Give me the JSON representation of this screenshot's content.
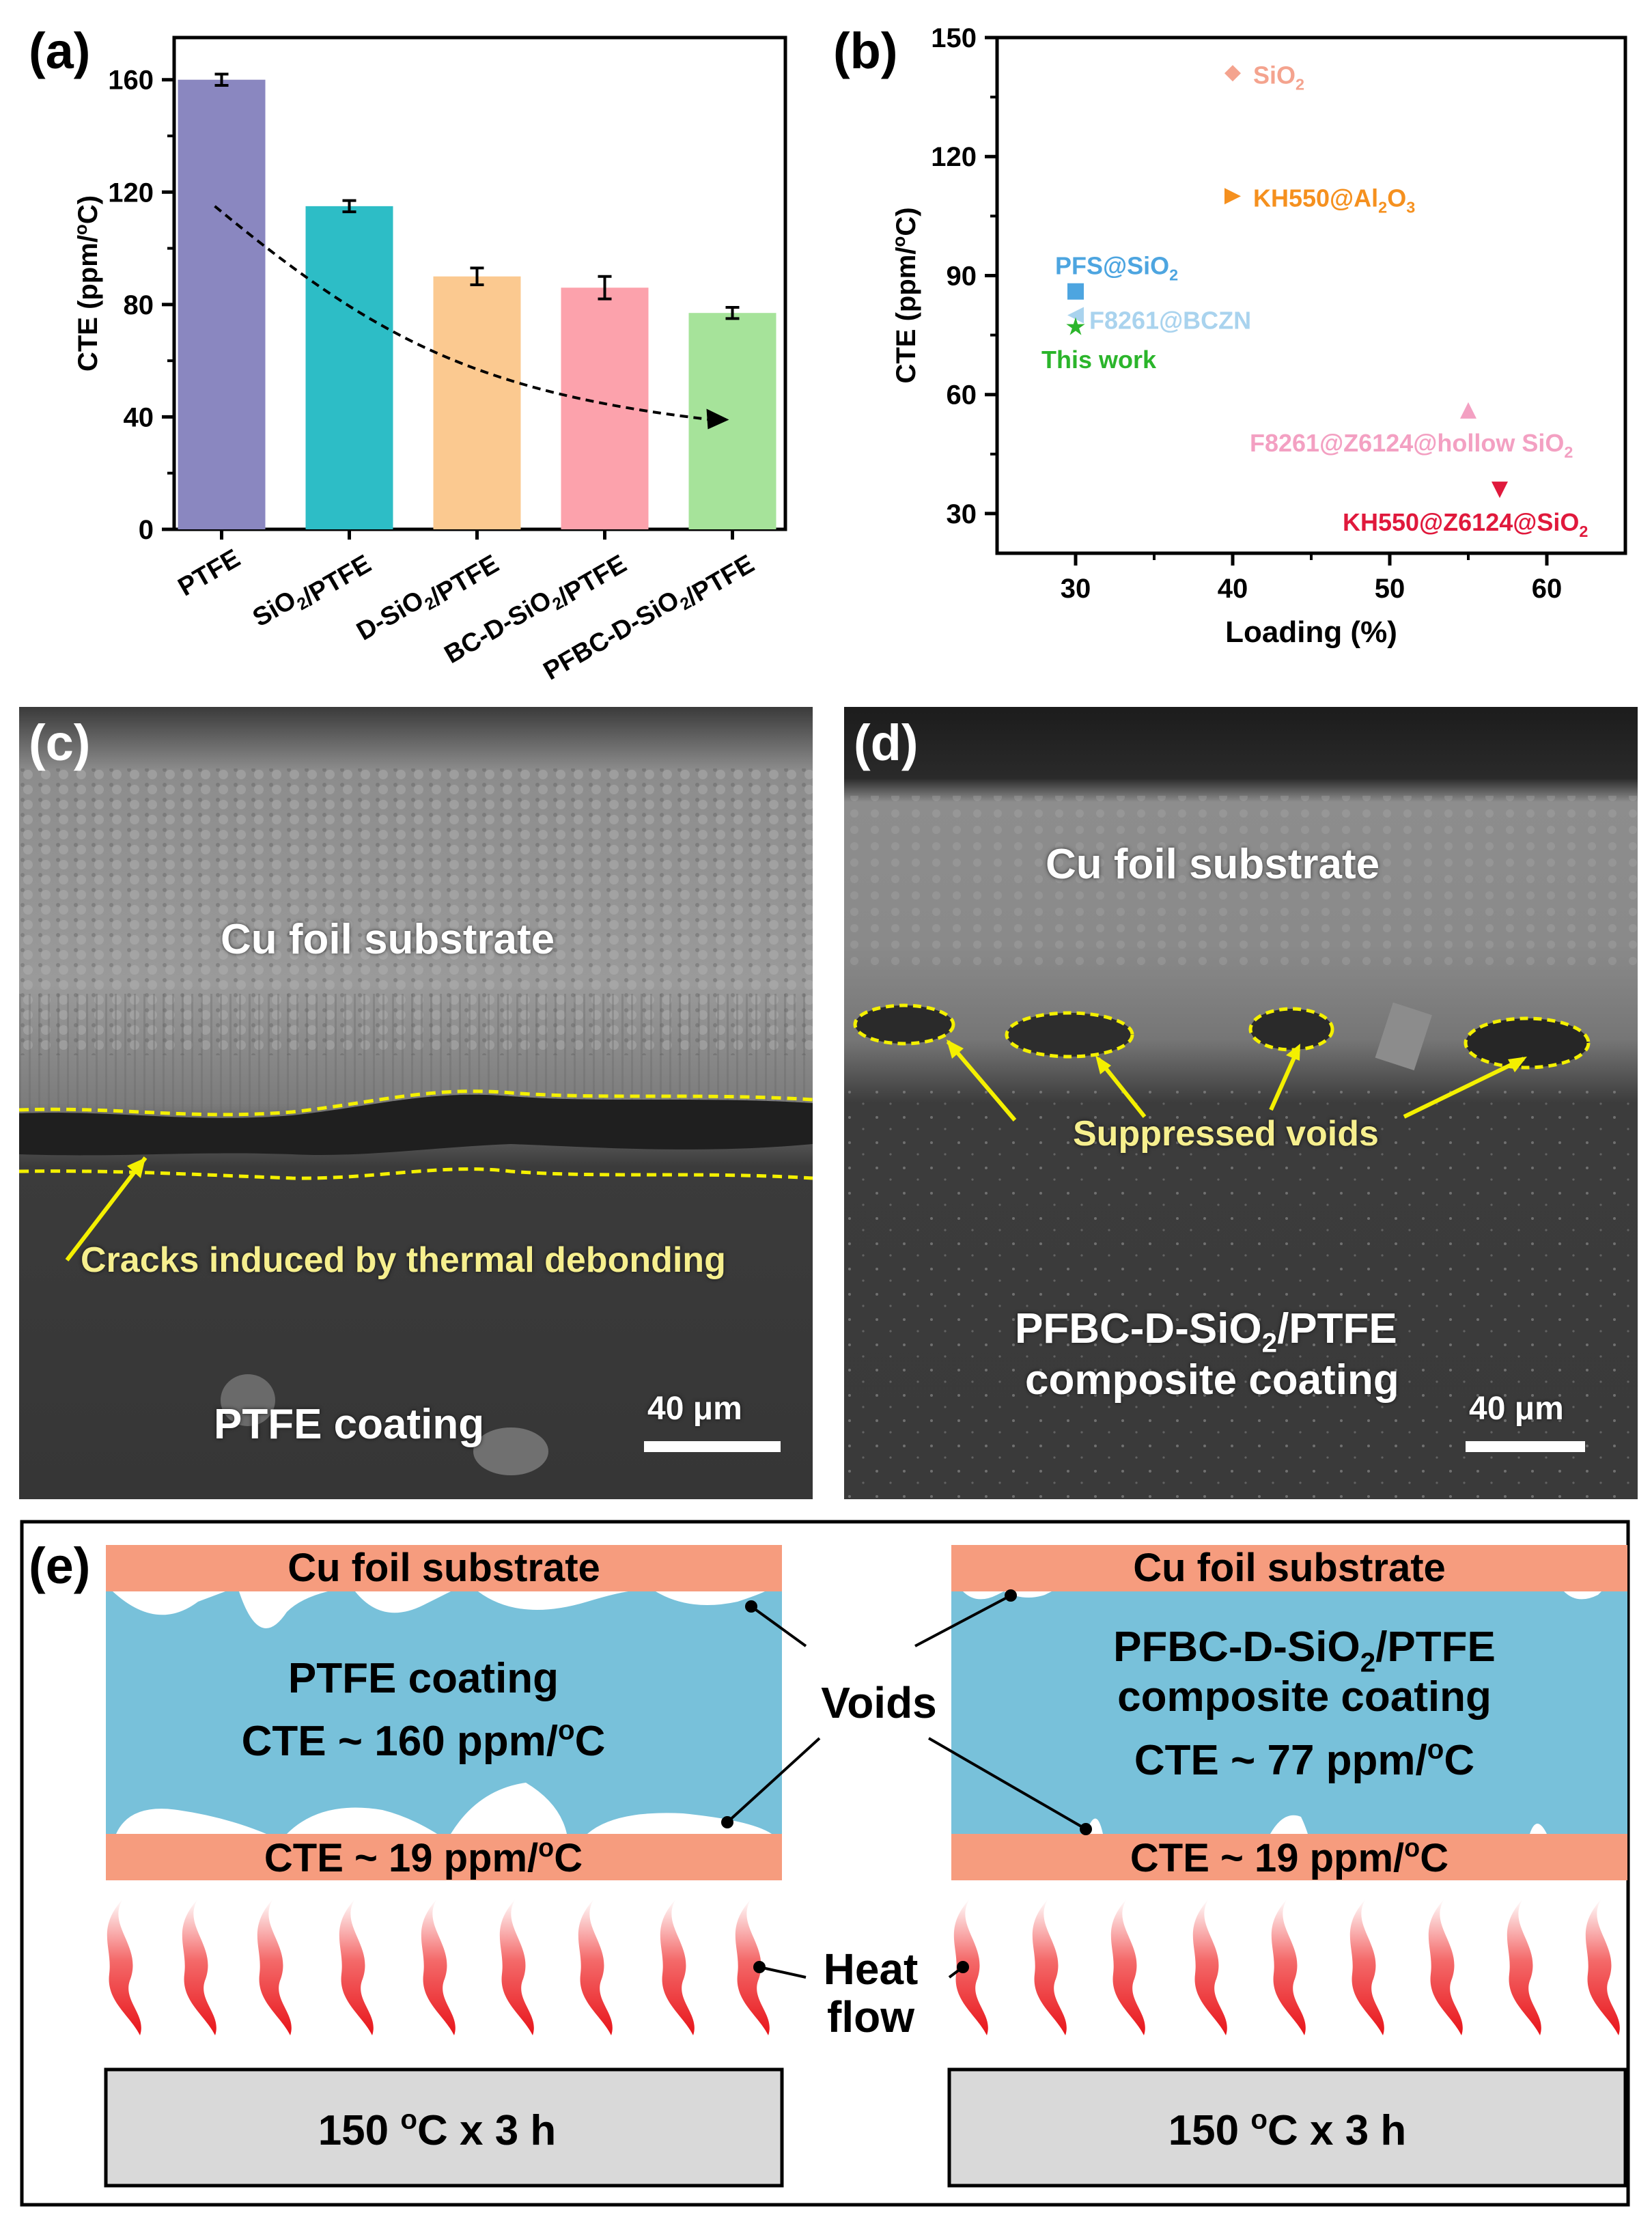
{
  "panel_letters": {
    "a": "(a)",
    "b": "(b)",
    "c": "(c)",
    "d": "(d)",
    "e": "(e)"
  },
  "chart_data": [
    {
      "id": "a",
      "type": "bar",
      "title": "",
      "xlabel": "",
      "ylabel": "CTE (ppm/oC)",
      "ylim": [
        0,
        175
      ],
      "yticks": [
        0,
        40,
        80,
        120,
        160
      ],
      "categories": [
        "PTFE",
        "SiO2/PTFE",
        "D-SiO2/PTFE",
        "BC-D-SiO2/PTFE",
        "PFBC-D-SiO2/PTFE"
      ],
      "values": [
        160,
        115,
        90,
        86,
        77
      ],
      "errors": [
        2,
        2,
        3,
        4,
        2
      ],
      "colors": [
        "#8a87c0",
        "#2dbdc6",
        "#fbc990",
        "#fca2ac",
        "#a6e39a"
      ],
      "annotation": "dashed downward trend arrow from PTFE to PFBC-D-SiO2/PTFE"
    },
    {
      "id": "b",
      "type": "scatter",
      "title": "",
      "xlabel": "Loading (%)",
      "ylabel": "CTE (ppm/oC)",
      "xlim": [
        25,
        65
      ],
      "ylim": [
        20,
        150
      ],
      "xticks": [
        30,
        40,
        50,
        60
      ],
      "yticks": [
        30,
        60,
        90,
        120,
        150
      ],
      "points": [
        {
          "label": "SiO2",
          "x": 40,
          "y": 141,
          "color": "#f4a38e",
          "marker": "diamond"
        },
        {
          "label": "KH550@Al2O3",
          "x": 40,
          "y": 110,
          "color": "#f5901e",
          "marker": "triangle-right"
        },
        {
          "label": "PFS@SiO2",
          "x": 30,
          "y": 86,
          "color": "#4da5e0",
          "marker": "square"
        },
        {
          "label": "F8261@BCZN",
          "x": 30,
          "y": 80,
          "color": "#a9d3ee",
          "marker": "triangle-left"
        },
        {
          "label": "This work",
          "x": 30,
          "y": 77,
          "color": "#2bb52b",
          "marker": "star"
        },
        {
          "label": "F8261@Z6124@hollow SiO2",
          "x": 55,
          "y": 56,
          "color": "#f3a0c2",
          "marker": "triangle-up"
        },
        {
          "label": "KH550@Z6124@SiO2",
          "x": 57,
          "y": 36,
          "color": "#e0193c",
          "marker": "triangle-down"
        }
      ]
    }
  ],
  "panel_c": {
    "substrate": "Cu foil substrate",
    "annotation": "Cracks induced by thermal debonding",
    "coating": "PTFE coating",
    "scale": "40 μm"
  },
  "panel_d": {
    "substrate": "Cu foil substrate",
    "annotation": "Suppressed voids",
    "coating_line1": "PFBC-D-SiO2/PTFE",
    "coating_line2": "composite coating",
    "scale": "40 μm"
  },
  "panel_e": {
    "left": {
      "substrate": "Cu foil substrate",
      "coating": "PTFE coating",
      "coating_cte": "CTE ~ 160 ppm/oC",
      "cu_cte": "CTE ~ 19 ppm/oC",
      "heater": "150 oC x 3 h"
    },
    "right": {
      "substrate": "Cu foil substrate",
      "coating_line1": "PFBC-D-SiO2/PTFE",
      "coating_line2": "composite coating",
      "coating_cte": "CTE ~ 77 ppm/oC",
      "cu_cte": "CTE ~ 19 ppm/oC",
      "heater": "150 oC x 3 h"
    },
    "voids_label": "Voids",
    "heat_line1": "Heat",
    "heat_line2": "flow"
  },
  "colors": {
    "copper": "#f69c7e",
    "coating": "#78c1da",
    "heater": "#d9d9d9",
    "flame": "#ee2a2a"
  }
}
